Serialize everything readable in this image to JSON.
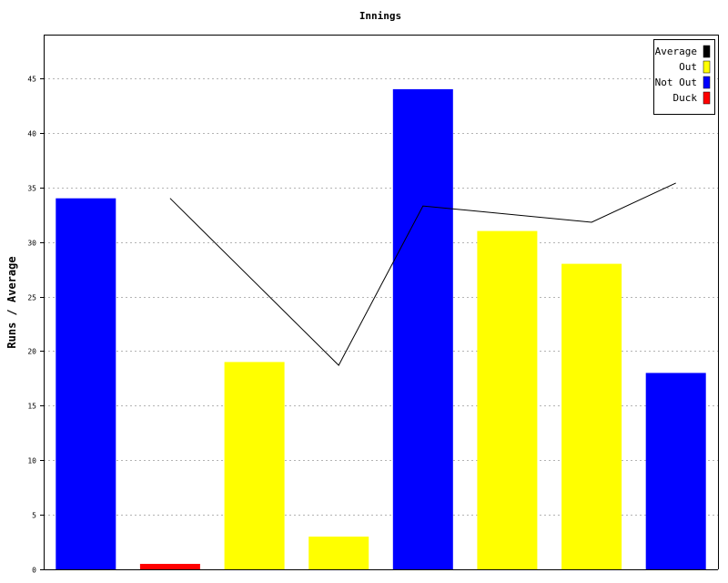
{
  "chart_data": {
    "type": "bar",
    "title": "Innings",
    "xlabel": "",
    "ylabel": "Runs / Average",
    "ylim": [
      0,
      49
    ],
    "yticks": [
      0,
      5,
      10,
      15,
      20,
      25,
      30,
      35,
      40,
      45
    ],
    "grid": true,
    "legend_position": "top-right",
    "legend": [
      {
        "name": "Average",
        "color": "#000000"
      },
      {
        "name": "Out",
        "color": "#ffff00"
      },
      {
        "name": "Not Out",
        "color": "#0000ff"
      },
      {
        "name": "Duck",
        "color": "#ff0000"
      }
    ],
    "bars": [
      {
        "value": 34,
        "type": "Not Out"
      },
      {
        "value": 0.5,
        "type": "Duck"
      },
      {
        "value": 19,
        "type": "Out"
      },
      {
        "value": 3,
        "type": "Out"
      },
      {
        "value": 44,
        "type": "Not Out"
      },
      {
        "value": 31,
        "type": "Out"
      },
      {
        "value": 28,
        "type": "Out"
      },
      {
        "value": 18,
        "type": "Not Out"
      }
    ],
    "average": [
      null,
      34,
      null,
      18.7,
      33.3,
      null,
      31.8,
      35.4
    ],
    "colors": {
      "Average": "#000000",
      "Out": "#ffff00",
      "Not Out": "#0000ff",
      "Duck": "#ff0000"
    }
  }
}
